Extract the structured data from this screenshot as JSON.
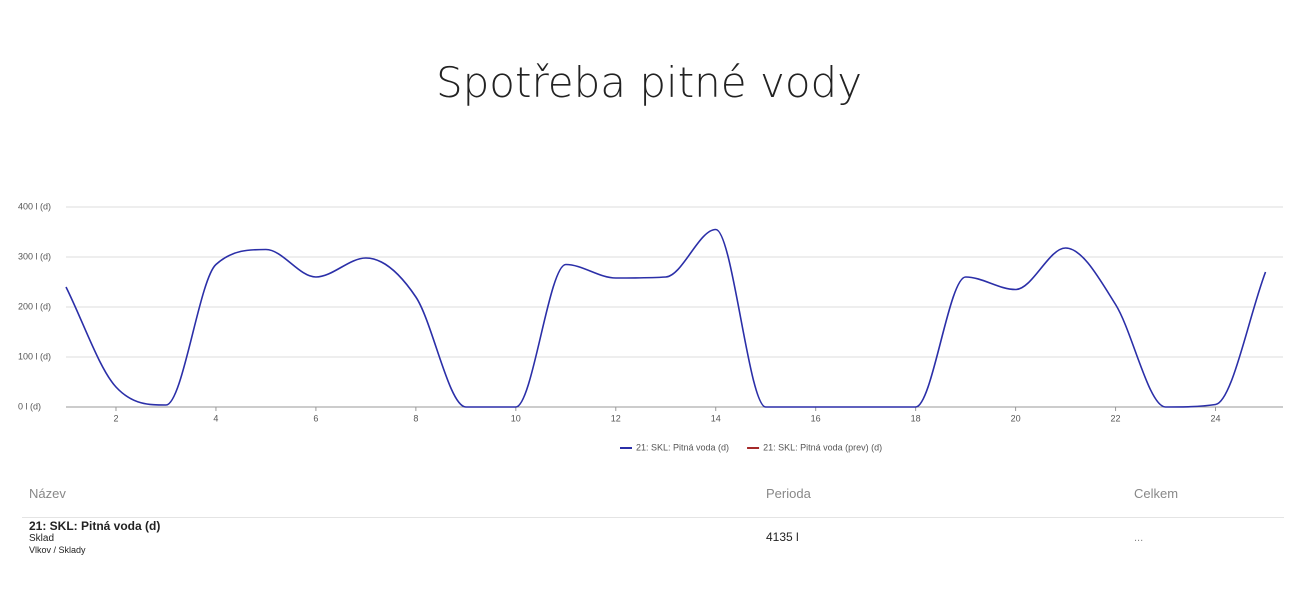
{
  "chart_data": {
    "type": "line",
    "title": "Spotřeba pitné vody",
    "x": [
      1,
      2,
      3,
      4,
      5,
      6,
      7,
      8,
      9,
      10,
      11,
      12,
      13,
      14,
      15,
      16,
      17,
      18,
      19,
      20,
      21,
      22,
      23,
      24,
      25
    ],
    "series": [
      {
        "name": "21: SKL: Pitná voda (d)",
        "color": "#2b2fa8",
        "values": [
          240,
          40,
          4,
          285,
          315,
          260,
          298,
          220,
          0,
          0,
          285,
          258,
          260,
          355,
          0,
          0,
          0,
          0,
          260,
          235,
          318,
          205,
          0,
          5,
          270
        ]
      },
      {
        "name": "21: SKL: Pitná voda (prev) (d)",
        "color": "#a52a2a",
        "values": [
          null,
          null,
          null,
          null,
          null,
          null,
          null,
          null,
          null,
          null,
          null,
          null,
          null,
          null,
          null,
          null,
          null,
          null,
          null,
          null,
          null,
          null,
          null,
          null,
          null
        ]
      }
    ],
    "xlim": [
      1,
      25.35
    ],
    "xticks": [
      2,
      4,
      6,
      8,
      10,
      12,
      14,
      16,
      18,
      20,
      22,
      24
    ],
    "ylim": [
      0,
      400
    ],
    "yticks": [
      {
        "value": 0,
        "label": "0 l (d)"
      },
      {
        "value": 100,
        "label": "100 l (d)"
      },
      {
        "value": 200,
        "label": "200 l (d)"
      },
      {
        "value": 300,
        "label": "300 l (d)"
      },
      {
        "value": 400,
        "label": "400 l (d)"
      }
    ],
    "grid": true,
    "legend": "bottom"
  },
  "table": {
    "headers": [
      "Název",
      "Perioda",
      "Celkem"
    ],
    "rows": [
      {
        "name": "21: SKL: Pitná voda (d)",
        "category": "Sklad",
        "location": "Vlkov / Sklady",
        "period": "4135 l",
        "total": "..."
      }
    ]
  }
}
